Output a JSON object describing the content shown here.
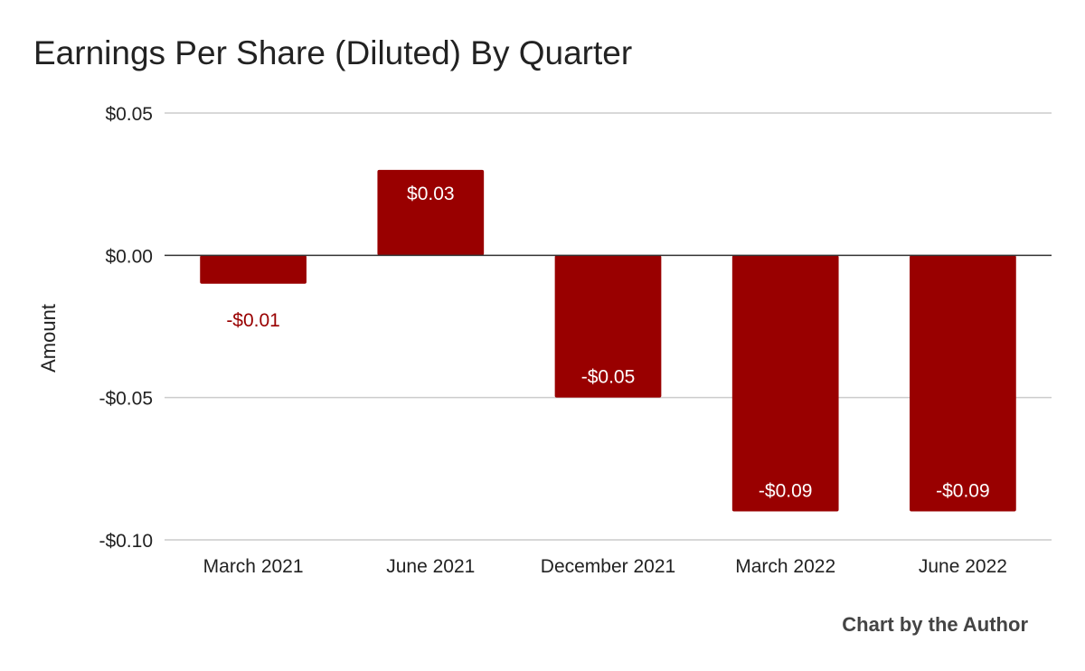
{
  "chart_data": {
    "type": "bar",
    "title": "Earnings Per Share (Diluted) By Quarter",
    "xlabel": "",
    "ylabel": "Amount",
    "categories": [
      "March 2021",
      "June 2021",
      "December 2021",
      "March 2022",
      "June 2022"
    ],
    "values": [
      -0.01,
      0.03,
      -0.05,
      -0.09,
      -0.09
    ],
    "data_labels": [
      "-$0.01",
      "$0.03",
      "-$0.05",
      "-$0.09",
      "-$0.09"
    ],
    "ylim": [
      -0.1,
      0.05
    ],
    "yticks": [
      0.05,
      0.0,
      -0.05,
      -0.1
    ],
    "ytick_labels": [
      "$0.05",
      "$0.00",
      "-$0.05",
      "-$0.10"
    ],
    "grid": true,
    "legend": "none",
    "bar_color": "#990000",
    "credit": "Chart by the Author"
  }
}
